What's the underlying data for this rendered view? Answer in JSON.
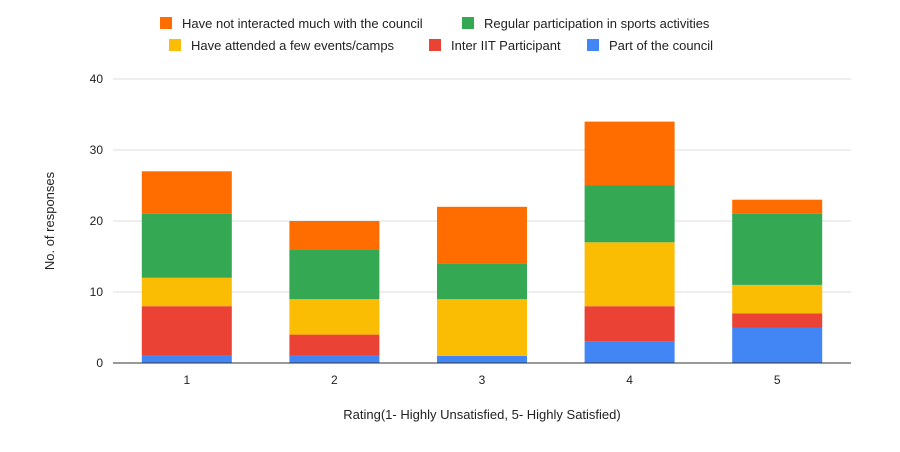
{
  "chart_data": {
    "type": "bar",
    "stacked": true,
    "title": "",
    "xlabel": "Rating(1- Highly Unsatisfied, 5- Highly Satisfied)",
    "ylabel": "No. of responses",
    "ylim": [
      0,
      40
    ],
    "yticks": [
      0,
      10,
      20,
      30,
      40
    ],
    "grid": true,
    "legend_position": "top",
    "categories": [
      "1",
      "2",
      "3",
      "4",
      "5"
    ],
    "series": [
      {
        "name": "Part of the council",
        "color": "#4285F4",
        "values": [
          1,
          1,
          1,
          3,
          5
        ]
      },
      {
        "name": "Inter IIT Participant",
        "color": "#EA4335",
        "values": [
          7,
          3,
          0,
          5,
          2
        ]
      },
      {
        "name": "Have attended a few events/camps",
        "color": "#FBBC04",
        "values": [
          4,
          5,
          8,
          9,
          4
        ]
      },
      {
        "name": "Regular participation in sports activities",
        "color": "#34A853",
        "values": [
          9,
          7,
          5,
          8,
          10
        ]
      },
      {
        "name": "Have not interacted much with the council",
        "color": "#FF6D01",
        "values": [
          6,
          4,
          8,
          9,
          2
        ]
      }
    ],
    "legend_order": [
      "Have not interacted much with the council",
      "Regular participation in sports activities",
      "Have attended a few events/camps",
      "Inter IIT Participant",
      "Part of the council"
    ]
  }
}
